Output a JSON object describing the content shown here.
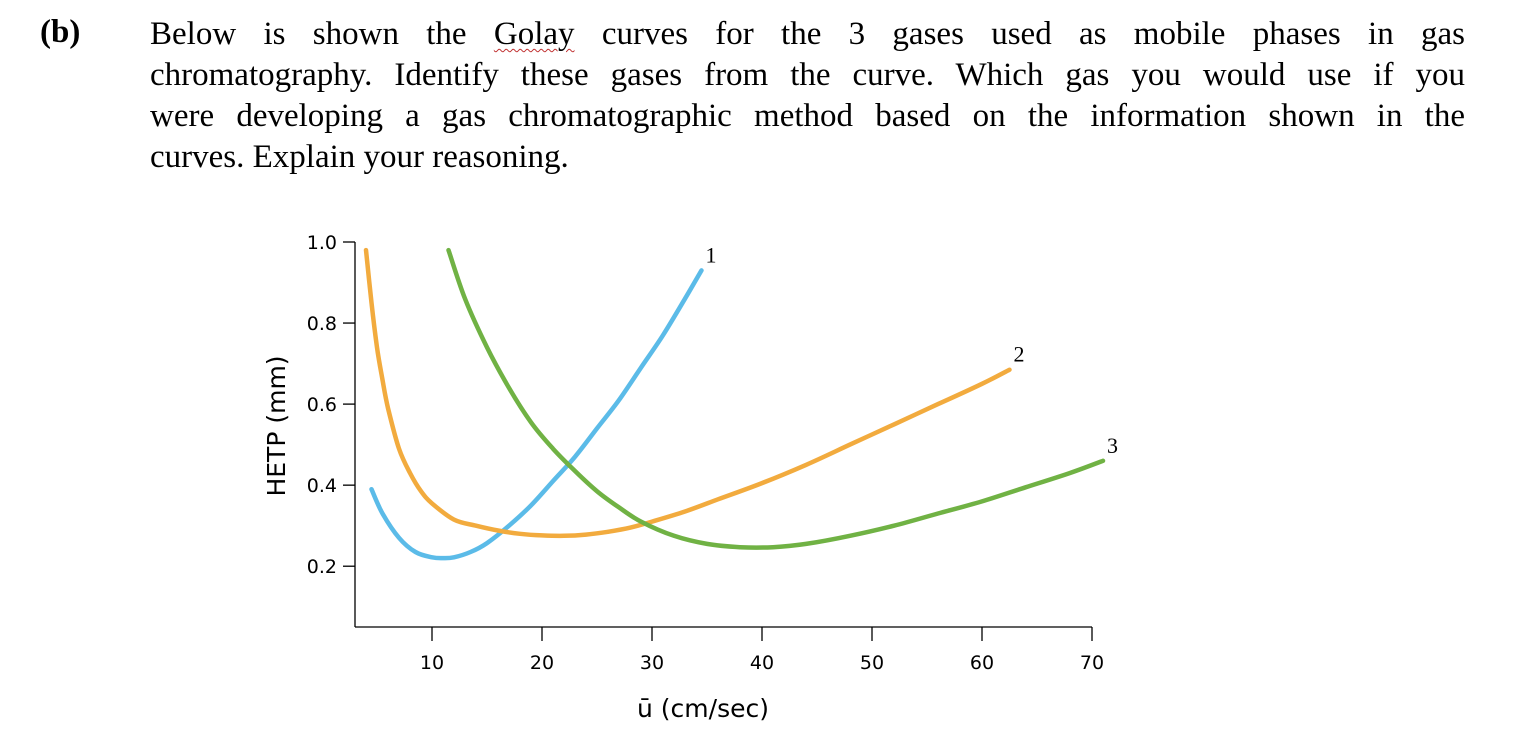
{
  "question": {
    "number": "(b)",
    "lines": [
      {
        "pre": "Below is shown the ",
        "emph": "Golay",
        "post": " curves for the 3 gases used as mobile phases in gas"
      },
      {
        "pre": "chromatography. Identify these gases from the curve. Which gas you would use if you",
        "emph": "",
        "post": ""
      },
      {
        "pre": "were developing a gas chromatographic method based on the information shown in the",
        "emph": "",
        "post": ""
      },
      {
        "pre": "curves. Explain your reasoning.",
        "emph": "",
        "post": ""
      }
    ]
  },
  "chart_data": {
    "type": "line",
    "title": "",
    "xlabel": "ū (cm/sec)",
    "ylabel": "HETP (mm)",
    "xlim": [
      3,
      71
    ],
    "ylim": [
      0.05,
      1.0
    ],
    "xticks": [
      10,
      20,
      30,
      40,
      50,
      60,
      70
    ],
    "xtick_labels": [
      "10",
      "20",
      "30",
      "40",
      "50",
      "60",
      "70"
    ],
    "yticks": [
      0.2,
      0.4,
      0.6,
      0.8,
      1.0
    ],
    "ytick_labels": [
      "0.2",
      "0.4",
      "0.6",
      "0.8",
      "1.0"
    ],
    "grid": false,
    "series": [
      {
        "label": "1",
        "color": "#5bbbe8",
        "x": [
          4.5,
          5.5,
          7,
          8.5,
          10,
          11,
          12,
          13.5,
          15,
          17,
          19,
          21,
          23,
          25,
          27,
          29,
          31,
          33,
          34.5
        ],
        "y": [
          0.39,
          0.33,
          0.27,
          0.235,
          0.222,
          0.22,
          0.222,
          0.235,
          0.257,
          0.3,
          0.35,
          0.41,
          0.47,
          0.54,
          0.61,
          0.69,
          0.77,
          0.86,
          0.93
        ]
      },
      {
        "label": "2",
        "color": "#f2ab3e",
        "x": [
          4,
          4.5,
          5,
          5.5,
          6,
          7,
          8,
          9,
          10,
          12,
          14,
          16,
          18,
          20,
          22,
          24,
          26,
          28,
          30,
          33,
          36,
          40,
          44,
          48,
          52,
          56,
          60,
          62.5
        ],
        "y": [
          0.98,
          0.85,
          0.74,
          0.66,
          0.59,
          0.49,
          0.43,
          0.385,
          0.355,
          0.315,
          0.3,
          0.288,
          0.28,
          0.276,
          0.275,
          0.278,
          0.285,
          0.295,
          0.31,
          0.335,
          0.365,
          0.405,
          0.45,
          0.5,
          0.55,
          0.6,
          0.65,
          0.685
        ]
      },
      {
        "label": "3",
        "color": "#70b244",
        "x": [
          11.5,
          13,
          15,
          17,
          19,
          21,
          23,
          25,
          27,
          29,
          32,
          35,
          38,
          41,
          44,
          48,
          52,
          56,
          60,
          64,
          68,
          71
        ],
        "y": [
          0.98,
          0.86,
          0.74,
          0.64,
          0.555,
          0.49,
          0.435,
          0.385,
          0.345,
          0.31,
          0.275,
          0.255,
          0.247,
          0.247,
          0.255,
          0.275,
          0.3,
          0.33,
          0.36,
          0.395,
          0.43,
          0.46
        ]
      }
    ]
  }
}
